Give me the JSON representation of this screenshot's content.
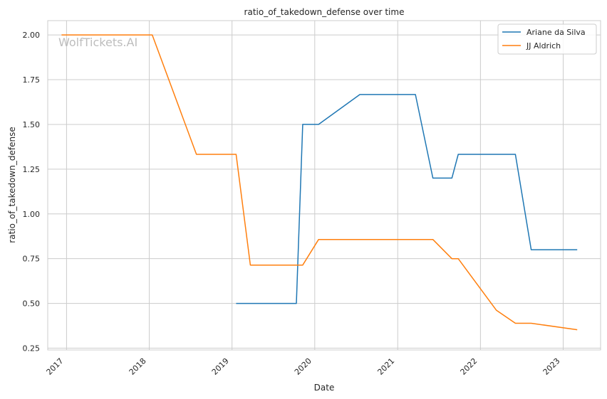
{
  "chart_data": {
    "type": "line",
    "title": "ratio_of_takedown_defense over time",
    "xlabel": "Date",
    "ylabel": "ratio_of_takedown_defense",
    "watermark": "WolfTickets.AI",
    "x_ticks": [
      "2017",
      "2018",
      "2019",
      "2020",
      "2021",
      "2022",
      "2023"
    ],
    "y_ticks": [
      "0.25",
      "0.50",
      "0.75",
      "1.00",
      "1.25",
      "1.50",
      "1.75",
      "2.00"
    ],
    "xlim": [
      "2016-10-10",
      "2023-06-15"
    ],
    "ylim": [
      0.24,
      2.08
    ],
    "grid": true,
    "legend_position": "top-right",
    "series": [
      {
        "name": "Ariane da Silva",
        "color": "#1f77b4",
        "points": [
          [
            "2019-01-19",
            0.5
          ],
          [
            "2019-10-12",
            0.5
          ],
          [
            "2019-11-09",
            1.5
          ],
          [
            "2020-01-18",
            1.5
          ],
          [
            "2020-07-18",
            1.667
          ],
          [
            "2021-03-20",
            1.667
          ],
          [
            "2021-06-05",
            1.2
          ],
          [
            "2021-08-28",
            1.2
          ],
          [
            "2021-09-25",
            1.333
          ],
          [
            "2022-06-04",
            1.333
          ],
          [
            "2022-08-13",
            0.8
          ],
          [
            "2023-03-04",
            0.8
          ]
        ]
      },
      {
        "name": "JJ Aldrich",
        "color": "#ff7f0e",
        "points": [
          [
            "2016-12-10",
            2.0
          ],
          [
            "2018-01-14",
            2.0
          ],
          [
            "2018-07-28",
            1.333
          ],
          [
            "2019-01-19",
            1.333
          ],
          [
            "2019-03-23",
            0.714
          ],
          [
            "2019-11-09",
            0.714
          ],
          [
            "2020-01-18",
            0.857
          ],
          [
            "2021-06-05",
            0.857
          ],
          [
            "2021-08-28",
            0.75
          ],
          [
            "2021-09-25",
            0.75
          ],
          [
            "2022-03-12",
            0.462
          ],
          [
            "2022-06-04",
            0.389
          ],
          [
            "2022-08-13",
            0.389
          ],
          [
            "2023-03-04",
            0.353
          ]
        ]
      }
    ]
  }
}
